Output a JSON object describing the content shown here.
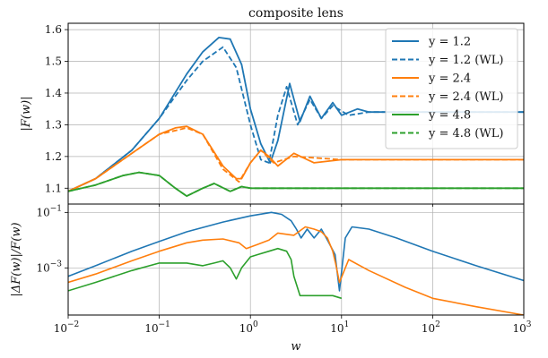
{
  "chart_data": [
    {
      "type": "line",
      "title": "composite lens",
      "xlabel": "",
      "ylabel": "|F(w)|",
      "xscale": "log",
      "xlim": [
        0.01,
        1000
      ],
      "ylim": [
        1.05,
        1.62
      ],
      "yticks": [
        "1.1",
        "1.2",
        "1.3",
        "1.4",
        "1.5",
        "1.6"
      ],
      "ytick_values": [
        1.1,
        1.2,
        1.3,
        1.4,
        1.5,
        1.6
      ],
      "grid": true,
      "legend_position": "upper right",
      "legend": [
        "y = 1.2",
        "y = 1.2 (WL)",
        "y = 2.4",
        "y = 2.4 (WL)",
        "y = 4.8",
        "y = 4.8 (WL)"
      ],
      "series": [
        {
          "name": "y = 1.2",
          "color": "#1f77b4",
          "style": "solid",
          "x": [
            0.01,
            0.02,
            0.05,
            0.1,
            0.2,
            0.3,
            0.45,
            0.6,
            0.8,
            1.0,
            1.3,
            1.65,
            2.0,
            2.7,
            3.5,
            4.5,
            6,
            8,
            10,
            15,
            20,
            50,
            100,
            1000
          ],
          "y": [
            1.09,
            1.13,
            1.22,
            1.32,
            1.46,
            1.53,
            1.575,
            1.57,
            1.49,
            1.35,
            1.24,
            1.18,
            1.25,
            1.43,
            1.31,
            1.39,
            1.32,
            1.37,
            1.33,
            1.35,
            1.34,
            1.34,
            1.34,
            1.34
          ]
        },
        {
          "name": "y = 1.2 (WL)",
          "color": "#1f77b4",
          "style": "dashed",
          "x": [
            0.01,
            0.02,
            0.05,
            0.1,
            0.2,
            0.3,
            0.5,
            0.7,
            1.0,
            1.3,
            1.6,
            2.0,
            2.5,
            3.3,
            4.5,
            6,
            8,
            12,
            20,
            1000
          ],
          "y": [
            1.09,
            1.13,
            1.22,
            1.32,
            1.44,
            1.5,
            1.545,
            1.48,
            1.3,
            1.19,
            1.18,
            1.33,
            1.42,
            1.3,
            1.38,
            1.32,
            1.36,
            1.33,
            1.34,
            1.34
          ]
        },
        {
          "name": "y = 2.4",
          "color": "#ff7f0e",
          "style": "solid",
          "x": [
            0.01,
            0.02,
            0.05,
            0.1,
            0.15,
            0.2,
            0.3,
            0.5,
            0.7,
            0.8,
            1.0,
            1.3,
            1.6,
            2.0,
            3.0,
            5.0,
            10,
            1000
          ],
          "y": [
            1.09,
            1.13,
            1.21,
            1.27,
            1.29,
            1.295,
            1.27,
            1.17,
            1.13,
            1.13,
            1.18,
            1.22,
            1.2,
            1.17,
            1.21,
            1.18,
            1.19,
            1.19
          ]
        },
        {
          "name": "y = 2.4 (WL)",
          "color": "#ff7f0e",
          "style": "dashed",
          "x": [
            0.01,
            0.02,
            0.05,
            0.1,
            0.2,
            0.3,
            0.5,
            0.75,
            1.0,
            1.3,
            1.8,
            3.0,
            10,
            1000
          ],
          "y": [
            1.09,
            1.13,
            1.21,
            1.27,
            1.29,
            1.27,
            1.16,
            1.12,
            1.18,
            1.22,
            1.18,
            1.2,
            1.19,
            1.19
          ]
        },
        {
          "name": "y = 4.8",
          "color": "#2ca02c",
          "style": "solid",
          "x": [
            0.01,
            0.02,
            0.04,
            0.06,
            0.1,
            0.15,
            0.2,
            0.3,
            0.4,
            0.6,
            0.8,
            1.0,
            1.5,
            3,
            1000
          ],
          "y": [
            1.09,
            1.11,
            1.14,
            1.15,
            1.14,
            1.1,
            1.075,
            1.1,
            1.115,
            1.09,
            1.105,
            1.1,
            1.1,
            1.1,
            1.1
          ]
        },
        {
          "name": "y = 4.8 (WL)",
          "color": "#2ca02c",
          "style": "dashed",
          "x": [
            0.01,
            0.02,
            0.04,
            0.06,
            0.1,
            0.15,
            0.2,
            0.3,
            0.4,
            0.6,
            0.8,
            1.0,
            1.5,
            3,
            1000
          ],
          "y": [
            1.09,
            1.11,
            1.14,
            1.15,
            1.14,
            1.1,
            1.075,
            1.1,
            1.115,
            1.09,
            1.105,
            1.1,
            1.1,
            1.1,
            1.1
          ]
        }
      ]
    },
    {
      "type": "line",
      "title": "",
      "xlabel": "w",
      "ylabel": "|ΔF(w)|/F(w)",
      "xscale": "log",
      "yscale": "log",
      "xlim": [
        0.01,
        1000
      ],
      "ylim": [
        2e-05,
        0.2
      ],
      "xticks": [
        "10",
        "10",
        "10",
        "10",
        "10",
        "10"
      ],
      "xtick_exponents": [
        "−2",
        "−1",
        "0",
        "1",
        "2",
        "3"
      ],
      "xtick_values": [
        0.01,
        0.1,
        1,
        10,
        100,
        1000
      ],
      "yticks": [
        "10",
        "10"
      ],
      "ytick_exponents": [
        "−3",
        "−1"
      ],
      "ytick_values": [
        0.001,
        0.1
      ],
      "grid": true,
      "series": [
        {
          "name": "y = 1.2",
          "color": "#1f77b4",
          "x": [
            0.01,
            0.02,
            0.05,
            0.1,
            0.2,
            0.5,
            1.0,
            1.7,
            2.2,
            2.8,
            3.2,
            3.6,
            4.2,
            5,
            6,
            7,
            8.5,
            9.5,
            11,
            13,
            20,
            40,
            100,
            300,
            1000
          ],
          "y": [
            0.0005,
            0.0012,
            0.004,
            0.009,
            0.02,
            0.045,
            0.075,
            0.1,
            0.085,
            0.05,
            0.025,
            0.012,
            0.025,
            0.012,
            0.025,
            0.01,
            0.003,
            0.00015,
            0.012,
            0.03,
            0.025,
            0.012,
            0.004,
            0.0012,
            0.00035
          ]
        },
        {
          "name": "y = 2.4",
          "color": "#ff7f0e",
          "x": [
            0.01,
            0.02,
            0.05,
            0.1,
            0.2,
            0.3,
            0.5,
            0.75,
            0.9,
            1.2,
            1.6,
            2.0,
            3.0,
            4.0,
            5.0,
            6.0,
            7.0,
            8.0,
            8.6,
            9.5,
            12,
            20,
            50,
            100,
            300,
            1000
          ],
          "y": [
            0.0003,
            0.0006,
            0.0018,
            0.004,
            0.008,
            0.01,
            0.011,
            0.008,
            0.005,
            0.007,
            0.01,
            0.018,
            0.015,
            0.03,
            0.025,
            0.02,
            0.012,
            0.004,
            0.0015,
            0.0003,
            0.002,
            0.0008,
            0.0002,
            8e-05,
            4e-05,
            2e-05
          ]
        },
        {
          "name": "y = 4.8",
          "color": "#2ca02c",
          "x": [
            0.01,
            0.02,
            0.05,
            0.1,
            0.2,
            0.3,
            0.4,
            0.5,
            0.6,
            0.7,
            0.8,
            1.0,
            1.2,
            1.6,
            2.0,
            2.5,
            2.8,
            3.0,
            3.5,
            5,
            8,
            10
          ],
          "y": [
            0.00015,
            0.0003,
            0.0008,
            0.0015,
            0.0015,
            0.0012,
            0.0015,
            0.0018,
            0.001,
            0.0004,
            0.001,
            0.0025,
            0.003,
            0.004,
            0.005,
            0.004,
            0.002,
            0.0005,
            0.0001,
            0.0001,
            0.0001,
            8e-05
          ]
        }
      ]
    }
  ]
}
